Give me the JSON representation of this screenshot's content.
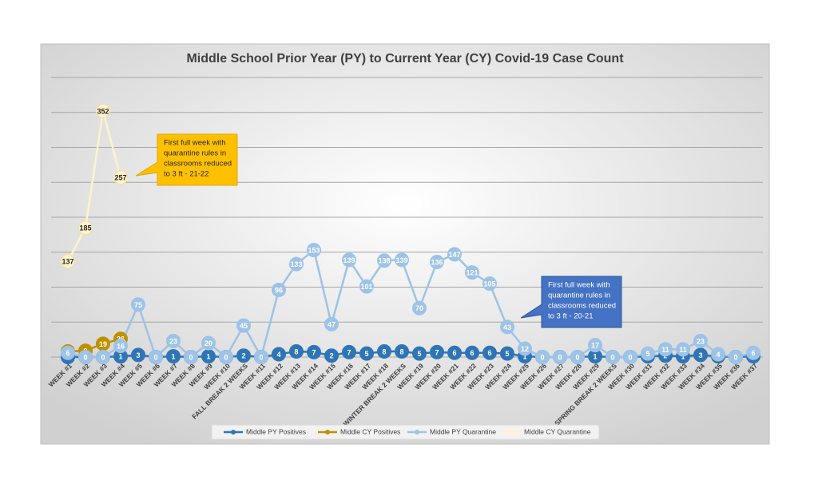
{
  "chart_data": {
    "type": "line",
    "title": "Middle School Prior Year (PY) to Current Year (CY) Covid-19 Case Count",
    "categories": [
      "WEEK #1",
      "WEEK #2",
      "WEEK #3",
      "WEEK #4",
      "WEEK #5",
      "WEEK #6",
      "WEEK #7",
      "WEEK #8",
      "WEEK #9",
      "WEEK #10",
      "FALL BREAK 2 WEEKS",
      "WEEK #11",
      "WEEK #12",
      "WEEK #13",
      "WEEK #14",
      "WEEK #15",
      "WEEK #16",
      "WEEK #17",
      "WEEK #18",
      "WINTER BREAK 2 WEEKS",
      "WEEK #19",
      "WEEK #20",
      "WEEK #21",
      "WEEK #22",
      "WEEK #23",
      "WEEK #24",
      "WEEK #25",
      "WEEK #26",
      "WEEK #27",
      "WEEK #28",
      "WEEK #29",
      "SPRING BREAK 2 WEEKS",
      "WEEK #30",
      "WEEK #31",
      "WEEK #32",
      "WEEK #33",
      "WEEK #34",
      "WEEK #35",
      "WEEK #36",
      "WEEK #37"
    ],
    "series": [
      {
        "name": "Middle PY Positives",
        "color": "#2e75b6",
        "values": [
          0,
          0,
          0,
          1,
          3,
          0,
          1,
          0,
          1,
          0,
          2,
          0,
          4,
          8,
          7,
          2,
          7,
          5,
          8,
          8,
          5,
          7,
          6,
          6,
          6,
          5,
          1,
          0,
          0,
          0,
          1,
          0,
          0,
          1,
          2,
          1,
          3,
          1,
          0,
          1
        ]
      },
      {
        "name": "Middle CY Positives",
        "color": "#bf9000",
        "values": [
          8,
          9,
          19,
          26,
          null,
          null,
          null,
          null,
          null,
          null,
          null,
          null,
          null,
          null,
          null,
          null,
          null,
          null,
          null,
          null,
          null,
          null,
          null,
          null,
          null,
          null,
          null,
          null,
          null,
          null,
          null,
          null,
          null,
          null,
          null,
          null,
          null,
          null,
          null,
          null
        ]
      },
      {
        "name": "Middle PY Quarantine",
        "color": "#9dc3e6",
        "values": [
          6,
          0,
          0,
          16,
          75,
          0,
          23,
          0,
          20,
          0,
          45,
          0,
          96,
          133,
          153,
          47,
          139,
          101,
          138,
          139,
          70,
          136,
          147,
          121,
          105,
          43,
          12,
          0,
          0,
          0,
          17,
          0,
          0,
          5,
          11,
          11,
          23,
          4,
          0,
          6
        ]
      },
      {
        "name": "Middle CY Quarantine",
        "color": "#fff2cc",
        "values": [
          137,
          185,
          352,
          257,
          null,
          null,
          null,
          null,
          null,
          null,
          null,
          null,
          null,
          null,
          null,
          null,
          null,
          null,
          null,
          null,
          null,
          null,
          null,
          null,
          null,
          null,
          null,
          null,
          null,
          null,
          null,
          null,
          null,
          null,
          null,
          null,
          null,
          null,
          null,
          null
        ]
      }
    ],
    "ylim": [
      0,
      400
    ],
    "yticks": [
      0,
      50,
      100,
      150,
      200,
      250,
      300,
      350,
      400
    ],
    "grid": true,
    "legend": "bottom",
    "annotations": [
      {
        "lines": [
          "First full week with",
          "quarantine rules in",
          "classrooms reduced",
          "to 3 ft - 21-22"
        ],
        "color": "#ffc000"
      },
      {
        "lines": [
          "First full week with",
          "quarantine rules in",
          "classrooms reduced",
          "to 3 ft - 20-21"
        ],
        "color": "#4472c4"
      }
    ]
  }
}
